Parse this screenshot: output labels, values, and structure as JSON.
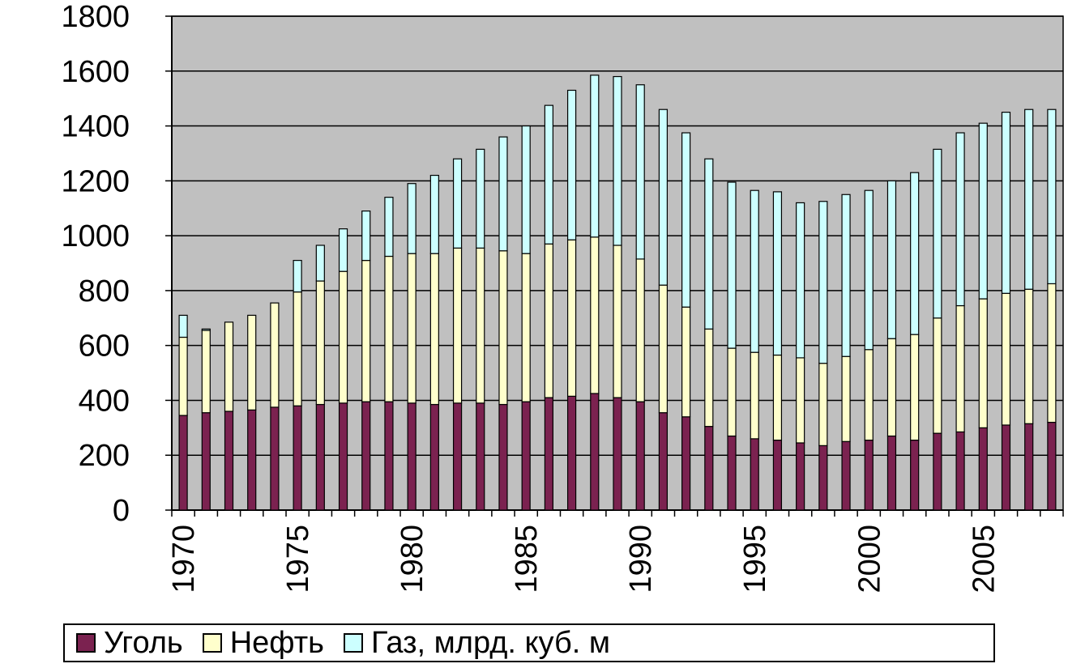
{
  "chart_data": {
    "type": "bar",
    "stacked": true,
    "x": [
      1970,
      1971,
      1972,
      1973,
      1974,
      1975,
      1976,
      1977,
      1978,
      1979,
      1980,
      1981,
      1982,
      1983,
      1984,
      1985,
      1986,
      1987,
      1988,
      1989,
      1990,
      1991,
      1992,
      1993,
      1994,
      1995,
      1996,
      1997,
      1998,
      1999,
      2000,
      2001,
      2002,
      2003,
      2004,
      2005,
      2006,
      2007,
      2008
    ],
    "x_tick_labels": [
      "1970",
      "1975",
      "1980",
      "1985",
      "1990",
      "1995",
      "2000",
      "2005"
    ],
    "y_tick_labels": [
      "0",
      "200",
      "400",
      "600",
      "800",
      "1000",
      "1200",
      "1400",
      "1600",
      "1800"
    ],
    "ylim": [
      0,
      1800
    ],
    "grid": true,
    "legend_position": "bottom",
    "series": [
      {
        "name": "Уголь",
        "color": "#7b2250",
        "values": [
          345,
          355,
          360,
          365,
          375,
          380,
          385,
          390,
          395,
          395,
          390,
          385,
          390,
          390,
          385,
          395,
          410,
          415,
          425,
          410,
          395,
          355,
          340,
          305,
          270,
          260,
          255,
          245,
          235,
          250,
          255,
          270,
          255,
          280,
          285,
          300,
          310,
          315,
          320
        ]
      },
      {
        "name": "Нефть",
        "color": "#ffffcc",
        "values": [
          285,
          300,
          325,
          345,
          380,
          415,
          450,
          480,
          515,
          530,
          545,
          550,
          565,
          565,
          560,
          540,
          560,
          570,
          570,
          555,
          520,
          465,
          400,
          355,
          320,
          315,
          310,
          310,
          300,
          310,
          330,
          355,
          385,
          420,
          460,
          470,
          480,
          490,
          505
        ]
      },
      {
        "name": "Газ, млрд. куб. м",
        "color": "#ccffff",
        "values": [
          80,
          5,
          0,
          0,
          0,
          115,
          130,
          155,
          180,
          215,
          255,
          285,
          325,
          360,
          415,
          465,
          505,
          545,
          590,
          615,
          635,
          640,
          635,
          620,
          605,
          590,
          595,
          565,
          590,
          590,
          580,
          575,
          590,
          615,
          630,
          640,
          660,
          655,
          635
        ]
      }
    ]
  },
  "legend": {
    "items": [
      {
        "label": "Уголь",
        "color": "#7b2250"
      },
      {
        "label": "Нефть",
        "color": "#ffffcc"
      },
      {
        "label": "Газ, млрд. куб. м",
        "color": "#ccffff"
      }
    ]
  }
}
